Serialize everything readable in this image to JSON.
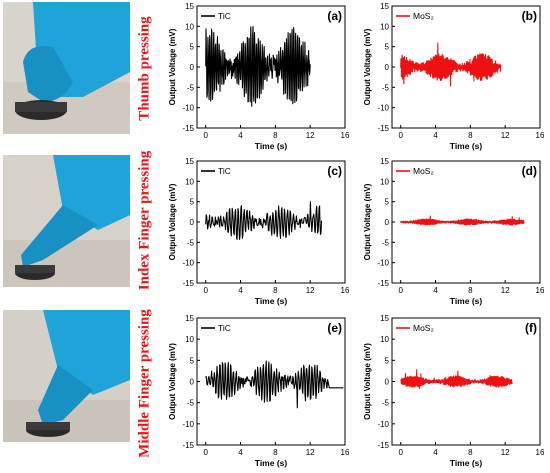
{
  "rows": [
    {
      "label": "Thumb pressing"
    },
    {
      "label": "Index Finger pressing"
    },
    {
      "label": "Middle Finger pressing"
    }
  ],
  "colors": {
    "tic": "#000000",
    "mos2": "#ee1111",
    "label": "#e8151b"
  },
  "chart_data": [
    {
      "type": "line",
      "panel_label": "(a)",
      "series": [
        {
          "name": "TiC",
          "color": "#000000",
          "duration": 12,
          "amplitude": 9,
          "cycles": 56,
          "seed": 1
        }
      ],
      "xlabel": "Time (s)",
      "ylabel": "Output Voltage (mV)",
      "xlim": [
        -1,
        16
      ],
      "ylim": [
        -15,
        15
      ],
      "xticks": [
        0,
        4,
        8,
        12,
        16
      ],
      "yticks": [
        -15,
        -10,
        -5,
        0,
        5,
        10,
        15
      ]
    },
    {
      "type": "line",
      "panel_label": "(b)",
      "series": [
        {
          "name": "MoS₂",
          "color": "#ee1111",
          "duration": 11.5,
          "amplitude": 3,
          "cycles": 90,
          "seed": 2
        }
      ],
      "xlabel": "Time (s)",
      "ylabel": "Output Voltage (mV)",
      "xlim": [
        -1,
        16
      ],
      "ylim": [
        -15,
        15
      ],
      "xticks": [
        0,
        4,
        8,
        12,
        16
      ],
      "yticks": [
        -15,
        -10,
        -5,
        0,
        5,
        10,
        15
      ]
    },
    {
      "type": "line",
      "panel_label": "(c)",
      "series": [
        {
          "name": "TiC",
          "color": "#000000",
          "duration": 13.3,
          "amplitude": 4,
          "cycles": 40,
          "seed": 3
        }
      ],
      "xlabel": "Time (s)",
      "ylabel": "Output Voltage (mV)",
      "xlim": [
        -1,
        16
      ],
      "ylim": [
        -15,
        15
      ],
      "xticks": [
        0,
        4,
        8,
        12,
        16
      ],
      "yticks": [
        -15,
        -10,
        -5,
        0,
        5,
        10,
        15
      ]
    },
    {
      "type": "line",
      "panel_label": "(d)",
      "series": [
        {
          "name": "MoS₂",
          "color": "#ee1111",
          "duration": 14.2,
          "amplitude": 0.7,
          "cycles": 110,
          "seed": 4
        }
      ],
      "xlabel": "Time (s)",
      "ylabel": "Output Voltage (mV)",
      "xlim": [
        -1,
        16
      ],
      "ylim": [
        -15,
        15
      ],
      "xticks": [
        0,
        4,
        8,
        12,
        16
      ],
      "yticks": [
        -15,
        -10,
        -5,
        0,
        5,
        10,
        15
      ]
    },
    {
      "type": "line",
      "panel_label": "(e)",
      "series": [
        {
          "name": "TiC",
          "color": "#000000",
          "duration": 14,
          "amplitude": 4.5,
          "cycles": 45,
          "seed": 5
        }
      ],
      "xlabel": "Time (s)",
      "ylabel": "Output Voltage (mV)",
      "xlim": [
        -1,
        16
      ],
      "ylim": [
        -15,
        15
      ],
      "xticks": [
        0,
        4,
        8,
        12,
        16
      ],
      "yticks": [
        -15,
        -10,
        -5,
        0,
        5,
        10,
        15
      ]
    },
    {
      "type": "line",
      "panel_label": "(f)",
      "series": [
        {
          "name": "MoS₂",
          "color": "#ee1111",
          "duration": 12.8,
          "amplitude": 1.2,
          "cycles": 100,
          "seed": 6
        }
      ],
      "xlabel": "Time (s)",
      "ylabel": "Output Voltage (mV)",
      "xlim": [
        -1,
        16
      ],
      "ylim": [
        -15,
        15
      ],
      "xticks": [
        0,
        4,
        8,
        12,
        16
      ],
      "yticks": [
        -15,
        -10,
        -5,
        0,
        5,
        10,
        15
      ]
    }
  ]
}
